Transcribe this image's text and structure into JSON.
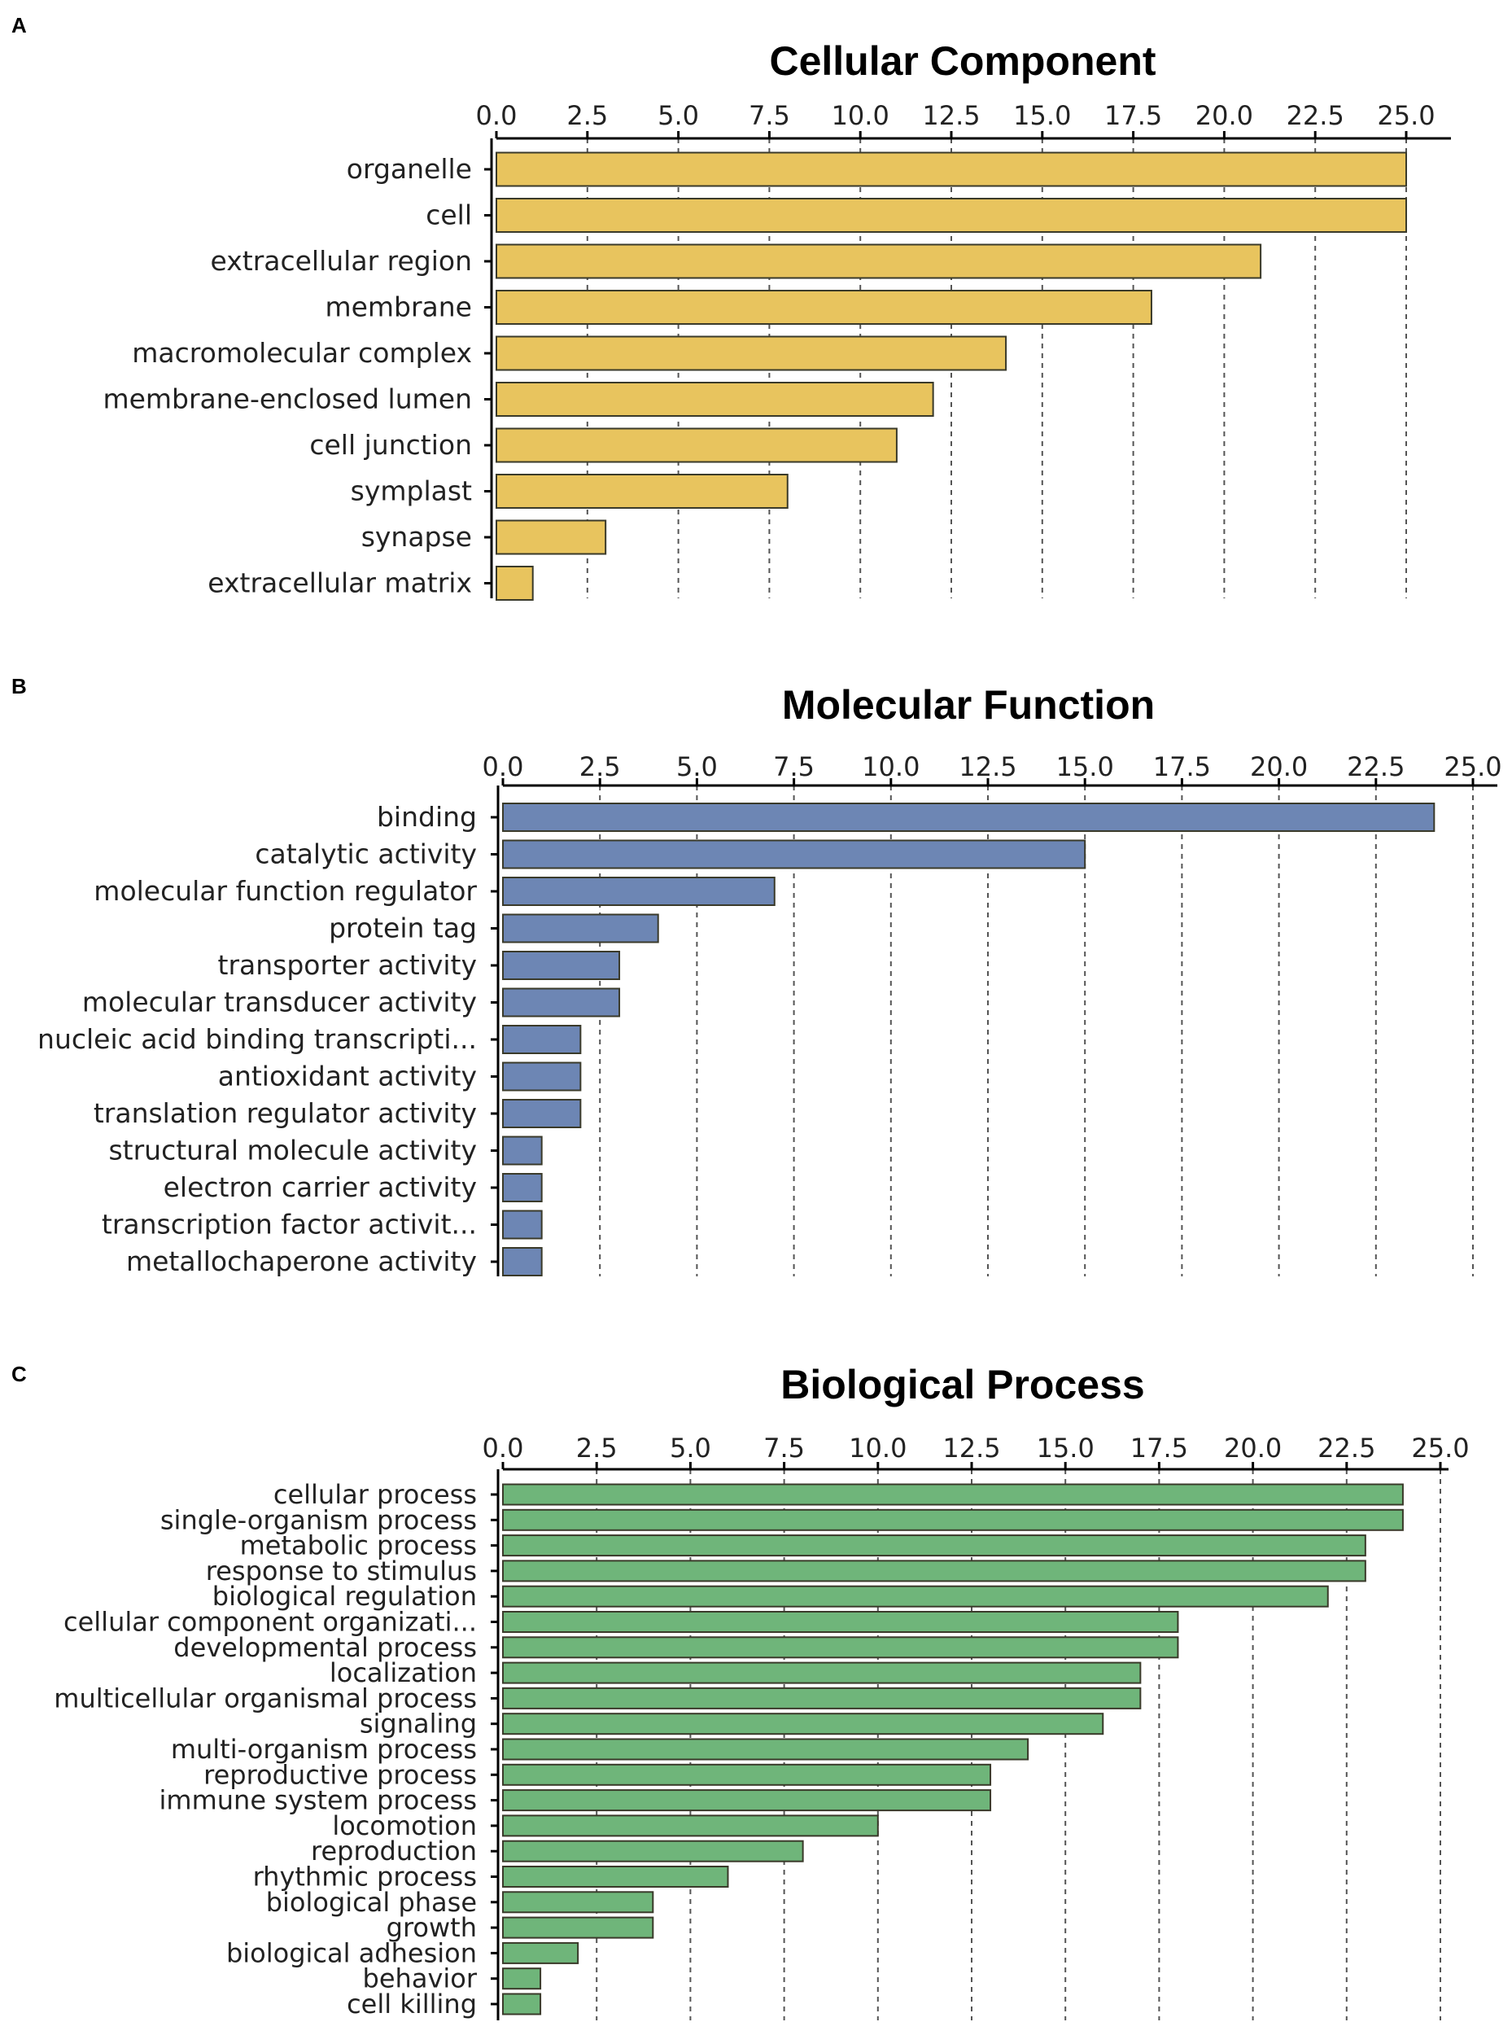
{
  "colors": {
    "A": "#e8c45e",
    "B": "#6d86b4",
    "C": "#6fb57a",
    "bar_edge": "#3a3a2a"
  },
  "chart_data": [
    {
      "panel": "A",
      "type": "bar",
      "orientation": "horizontal",
      "title": "Cellular Component",
      "xlim": [
        0,
        25
      ],
      "xticks": [
        "0.0",
        "2.5",
        "5.0",
        "7.5",
        "10.0",
        "12.5",
        "15.0",
        "17.5",
        "20.0",
        "22.5",
        "25.0"
      ],
      "categories": [
        "organelle",
        "cell",
        "extracellular region",
        "membrane",
        "macromolecular complex",
        "membrane-enclosed lumen",
        "cell junction",
        "symplast",
        "synapse",
        "extracellular matrix"
      ],
      "values": [
        25,
        25,
        21,
        18,
        14,
        12,
        11,
        8,
        3,
        1
      ],
      "grid": true
    },
    {
      "panel": "B",
      "type": "bar",
      "orientation": "horizontal",
      "title": "Molecular Function",
      "xlim": [
        0,
        25
      ],
      "xticks": [
        "0.0",
        "2.5",
        "5.0",
        "7.5",
        "10.0",
        "12.5",
        "15.0",
        "17.5",
        "20.0",
        "22.5",
        "25.0"
      ],
      "categories": [
        "binding",
        "catalytic activity",
        "molecular function regulator",
        "protein tag",
        "transporter activity",
        "molecular transducer activity",
        "nucleic acid binding transcripti...",
        "antioxidant activity",
        "translation regulator activity",
        "structural molecule activity",
        "electron carrier activity",
        "transcription factor activit...",
        "metallochaperone activity"
      ],
      "values": [
        24,
        15,
        7,
        4,
        3,
        3,
        2,
        2,
        2,
        1,
        1,
        1,
        1
      ],
      "grid": true
    },
    {
      "panel": "C",
      "type": "bar",
      "orientation": "horizontal",
      "title": "Biological Process",
      "xlim": [
        0,
        25
      ],
      "xticks": [
        "0.0",
        "2.5",
        "5.0",
        "7.5",
        "10.0",
        "12.5",
        "15.0",
        "17.5",
        "20.0",
        "22.5",
        "25.0"
      ],
      "categories": [
        "cellular process",
        "single-organism process",
        "metabolic process",
        "response to stimulus",
        "biological regulation",
        "cellular component organizati...",
        "developmental process",
        "localization",
        "multicellular organismal process",
        "signaling",
        "multi-organism process",
        "reproductive process",
        "immune system process",
        "locomotion",
        "reproduction",
        "rhythmic process",
        "biological phase",
        "growth",
        "biological adhesion",
        "behavior",
        "cell killing"
      ],
      "values": [
        24,
        24,
        23,
        23,
        22,
        18,
        18,
        17,
        17,
        16,
        14,
        13,
        13,
        10,
        8,
        6,
        4,
        4,
        2,
        1,
        1
      ],
      "grid": true
    }
  ]
}
